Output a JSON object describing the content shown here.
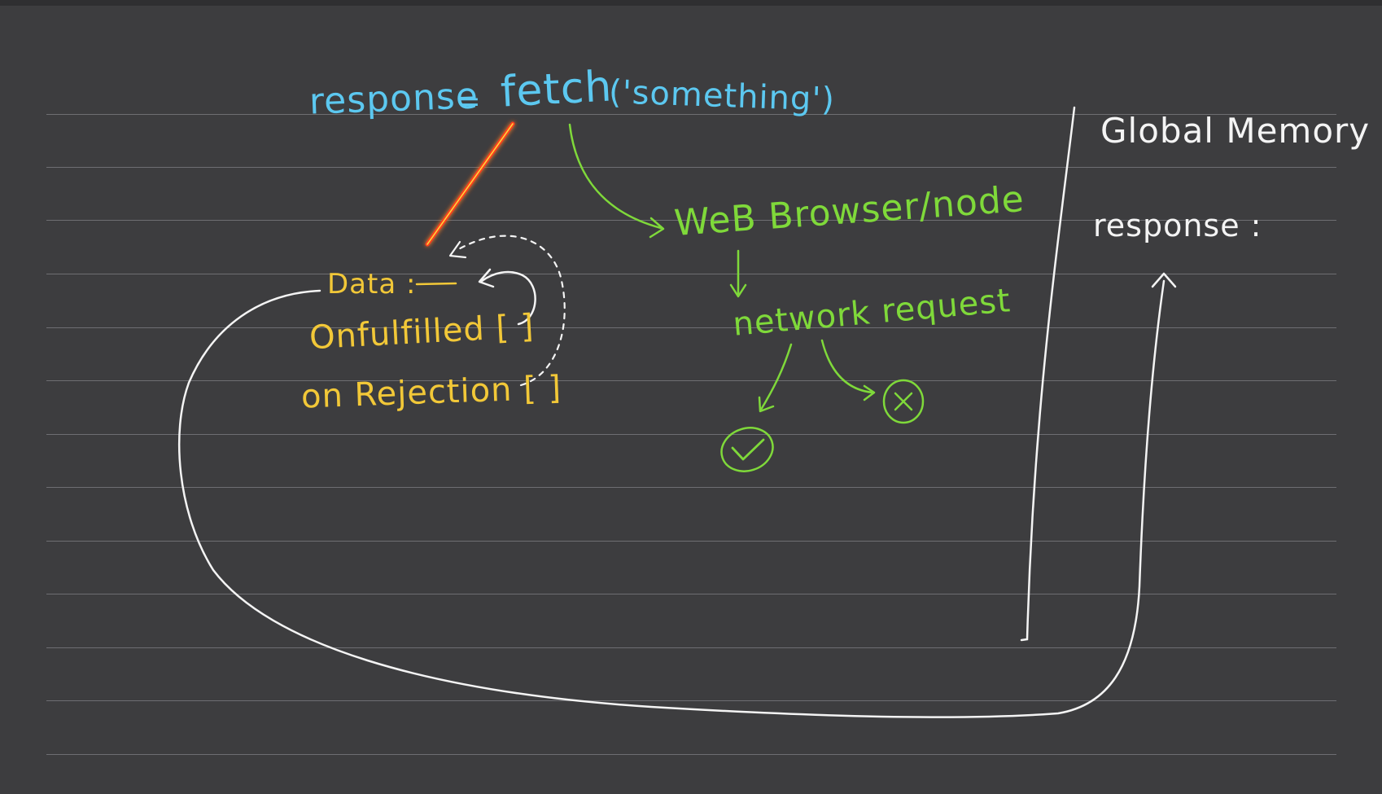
{
  "code_line": {
    "variable": "response",
    "equals": "=",
    "call": "fetch",
    "argument": "('something')"
  },
  "promise_object": {
    "data_label": "Data :",
    "on_fulfilled": "Onfulfilled [ ]",
    "on_rejection": "on Rejection [ ]"
  },
  "browser_flow": {
    "api": "WeB Browser/node",
    "network": "network request"
  },
  "global_memory": {
    "title": "Global Memory",
    "response_label": "response :"
  },
  "colors": {
    "board": "#3d3d3f",
    "rule_lines": "#6e6e72",
    "code": "#5cc8f0",
    "promise": "#f2c838",
    "browser": "#7fd93a",
    "memory": "#f4f4f4",
    "highlight": "#ff3b1f"
  },
  "icons": {
    "success": "check-circle-icon",
    "failure": "x-circle-icon"
  }
}
